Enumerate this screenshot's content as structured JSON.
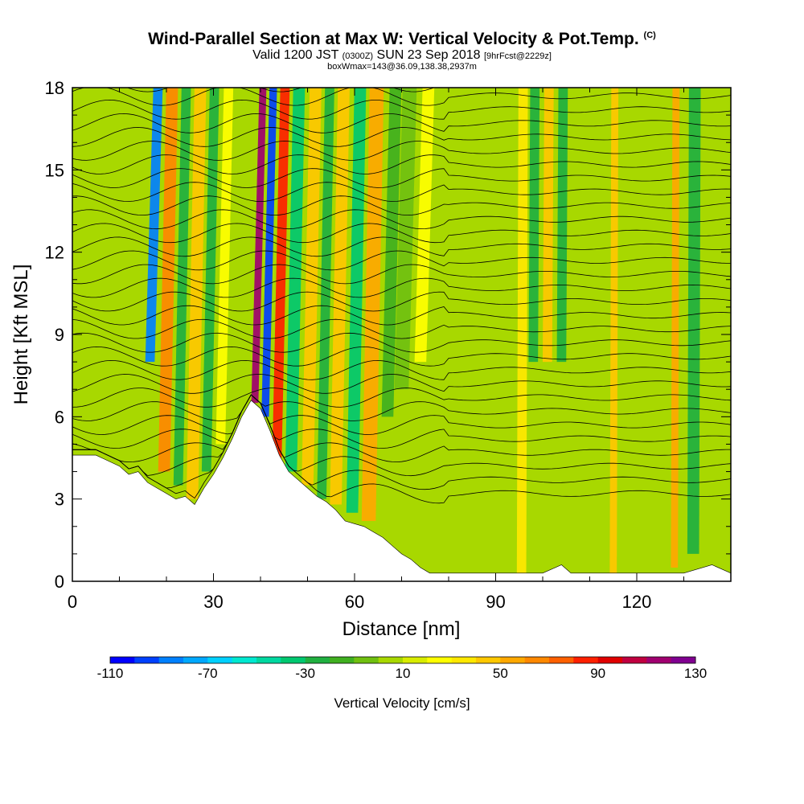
{
  "header": {
    "title": "Wind-Parallel Section at Max W: Vertical Velocity & Pot.Temp.",
    "title_mark": "(C)",
    "subtitle_prefix": "Valid 1200 JST",
    "subtitle_utc": "(0300Z)",
    "subtitle_date": "SUN 23 Sep 2018",
    "subtitle_fcst": "[9hrFcst@2229z]",
    "subtitle2": "boxWmax=143@36.09,138.38,2937m"
  },
  "chart_data": {
    "type": "heatmap",
    "title": "Wind-Parallel Section at Max W: Vertical Velocity & Pot.Temp.",
    "xlabel": "Distance [nm]",
    "ylabel": "Height [Kft MSL]",
    "xlim": [
      0,
      140
    ],
    "ylim": [
      0,
      18
    ],
    "x_ticks": [
      0,
      30,
      60,
      90,
      120
    ],
    "y_ticks": [
      0,
      3,
      6,
      9,
      12,
      15,
      18
    ],
    "terrain": {
      "x": [
        0,
        5,
        10,
        12,
        14,
        16,
        18,
        20,
        22,
        24,
        26,
        28,
        30,
        32,
        34,
        36,
        38,
        40,
        42,
        44,
        46,
        48,
        50,
        52,
        54,
        56,
        58,
        60,
        62,
        64,
        66,
        68,
        70,
        72,
        74,
        76,
        80,
        90,
        100,
        104,
        106,
        110,
        120,
        130,
        136,
        140
      ],
      "height_kft": [
        4.6,
        4.6,
        4.2,
        3.9,
        4.0,
        3.6,
        3.4,
        3.2,
        3.0,
        3.1,
        2.8,
        3.4,
        3.9,
        4.5,
        5.2,
        6.0,
        6.6,
        6.3,
        5.5,
        4.6,
        4.0,
        3.7,
        3.4,
        3.1,
        2.9,
        2.6,
        2.2,
        2.1,
        2.0,
        1.8,
        1.6,
        1.3,
        1.0,
        0.8,
        0.5,
        0.3,
        0.3,
        0.3,
        0.3,
        0.6,
        0.3,
        0.3,
        0.3,
        0.3,
        0.6,
        0.3
      ]
    },
    "vertical_velocity_bands": [
      {
        "x": 16.5,
        "width": 2.0,
        "w_cm_s": -90,
        "zmin": 8.0
      },
      {
        "x": 19.5,
        "width": 2.5,
        "w_cm_s": 60,
        "zmin": 4.0
      },
      {
        "x": 22.5,
        "width": 2.0,
        "w_cm_s": -30,
        "zmin": 3.5
      },
      {
        "x": 25.5,
        "width": 2.5,
        "w_cm_s": 40,
        "zmin": 3.0
      },
      {
        "x": 28.5,
        "width": 2.0,
        "w_cm_s": -30,
        "zmin": 4.0
      },
      {
        "x": 31.5,
        "width": 2.0,
        "w_cm_s": 20,
        "zmin": 5.0
      },
      {
        "x": 38.8,
        "width": 1.5,
        "w_cm_s": 110,
        "zmin": 6.5
      },
      {
        "x": 41.0,
        "width": 1.6,
        "w_cm_s": -100,
        "zmin": 6.0
      },
      {
        "x": 43.5,
        "width": 2.0,
        "w_cm_s": 80,
        "zmin": 4.5
      },
      {
        "x": 46.5,
        "width": 2.5,
        "w_cm_s": -40,
        "zmin": 4.0
      },
      {
        "x": 50.0,
        "width": 2.5,
        "w_cm_s": 40,
        "zmin": 3.5
      },
      {
        "x": 53.0,
        "width": 2.0,
        "w_cm_s": -30,
        "zmin": 3.0
      },
      {
        "x": 56.0,
        "width": 2.5,
        "w_cm_s": 40,
        "zmin": 2.8
      },
      {
        "x": 59.5,
        "width": 2.5,
        "w_cm_s": -40,
        "zmin": 2.5
      },
      {
        "x": 63.0,
        "width": 3.0,
        "w_cm_s": 50,
        "zmin": 2.2
      },
      {
        "x": 67.0,
        "width": 2.5,
        "w_cm_s": -20,
        "zmin": 6.0
      },
      {
        "x": 70.0,
        "width": 3.0,
        "w_cm_s": -10,
        "zmin": 7.0
      },
      {
        "x": 74.0,
        "width": 2.5,
        "w_cm_s": 20,
        "zmin": 8.0
      },
      {
        "x": 95.5,
        "width": 2.0,
        "w_cm_s": 30,
        "zmin": 0.3
      },
      {
        "x": 98.0,
        "width": 2.0,
        "w_cm_s": -30,
        "zmin": 8.0
      },
      {
        "x": 101.0,
        "width": 2.0,
        "w_cm_s": 40,
        "zmin": 8.0
      },
      {
        "x": 104.0,
        "width": 2.0,
        "w_cm_s": -30,
        "zmin": 8.0
      },
      {
        "x": 115.0,
        "width": 1.5,
        "w_cm_s": 40,
        "zmin": 0.3
      },
      {
        "x": 128.0,
        "width": 1.5,
        "w_cm_s": 50,
        "zmin": 0.5
      },
      {
        "x": 132.0,
        "width": 2.5,
        "w_cm_s": -30,
        "zmin": 1.0
      }
    ],
    "colorbar": {
      "label": "Vertical Velocity [cm/s]",
      "min": -110,
      "max": 130,
      "step": 10,
      "tick_labels": [
        -110,
        -70,
        -30,
        10,
        50,
        90,
        130
      ],
      "colors": [
        "#0000ff",
        "#0040ff",
        "#0080ff",
        "#00a8ff",
        "#00d0ff",
        "#00e8d0",
        "#00d8a0",
        "#00c870",
        "#20b040",
        "#40b020",
        "#70c010",
        "#a8d800",
        "#d8ec00",
        "#ffff00",
        "#ffe800",
        "#ffc800",
        "#ffa800",
        "#ff8800",
        "#ff6000",
        "#ff2000",
        "#e00000",
        "#c00040",
        "#a00070",
        "#800090",
        "#600090"
      ]
    }
  },
  "colorbar_labels": [
    "-110",
    "-70",
    "-30",
    "10",
    "50",
    "90",
    "130"
  ]
}
